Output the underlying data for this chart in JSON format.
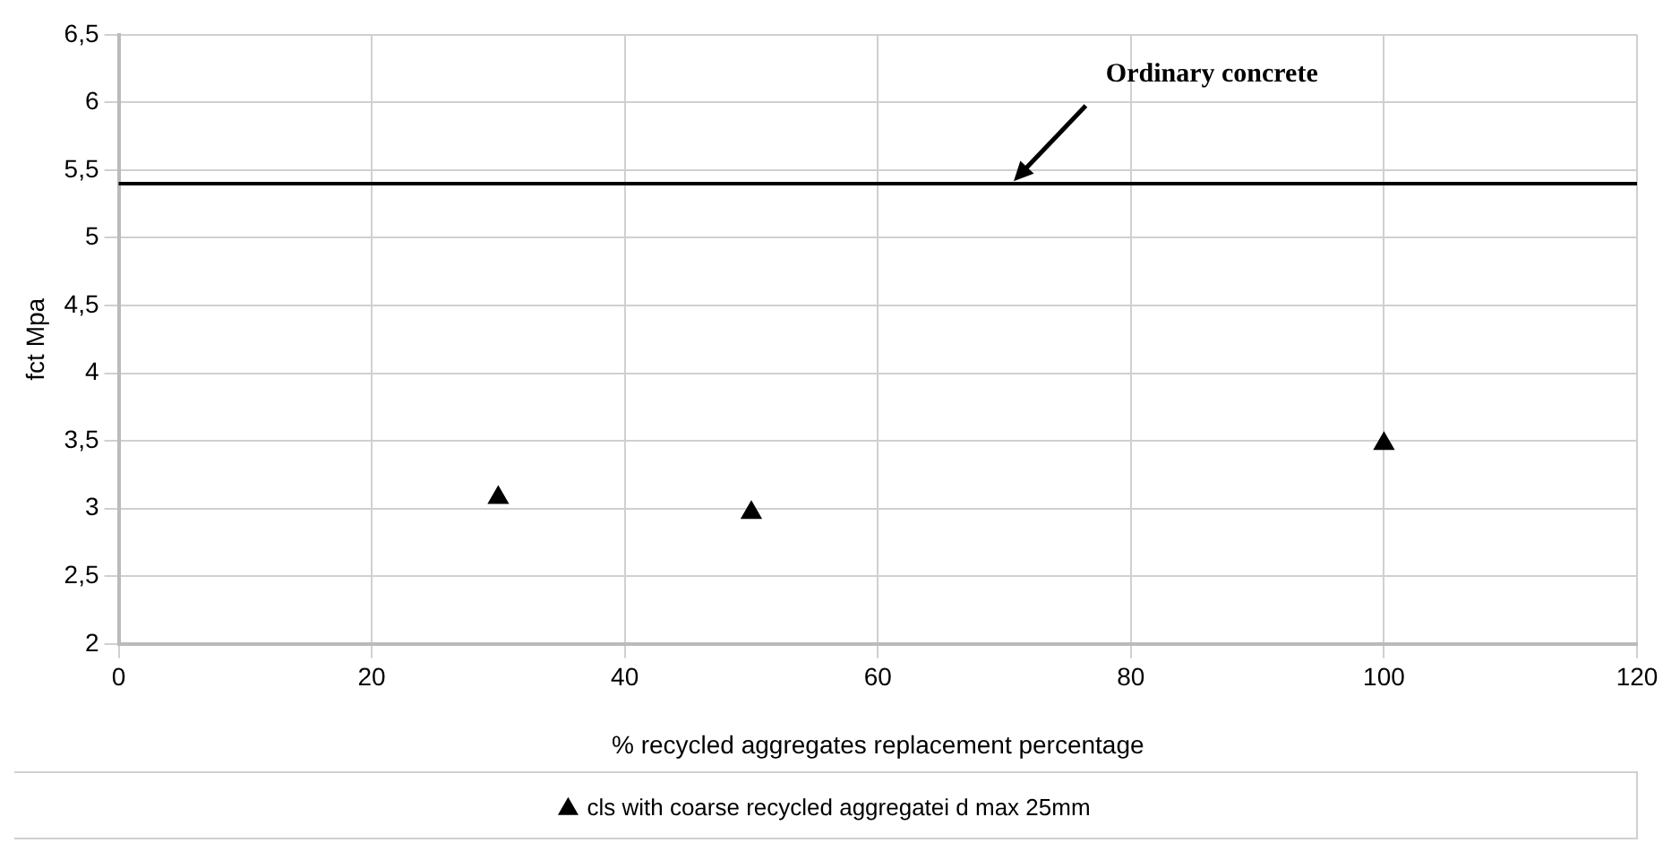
{
  "chart_data": {
    "type": "scatter",
    "xlabel": "% recycled aggregates replacement percentage",
    "ylabel": "fct Mpa",
    "x": [
      30,
      50,
      100
    ],
    "series": [
      {
        "name": "cls with coarse recycled aggregatei d max 25mm",
        "color": "#000000",
        "values": [
          3.08,
          2.97,
          3.48
        ]
      }
    ],
    "marker": "triangle",
    "xlim": [
      0,
      120
    ],
    "xticks": [
      0,
      20,
      40,
      60,
      80,
      100,
      120
    ],
    "ylim": [
      2,
      6.5
    ],
    "yticks": [
      {
        "value": 2,
        "label": "2"
      },
      {
        "value": 2.5,
        "label": "2,5"
      },
      {
        "value": 3,
        "label": "3"
      },
      {
        "value": 3.5,
        "label": "3,5"
      },
      {
        "value": 4,
        "label": "4"
      },
      {
        "value": 4.5,
        "label": "4,5"
      },
      {
        "value": 5,
        "label": "5"
      },
      {
        "value": 5.5,
        "label": "5,5"
      },
      {
        "value": 6,
        "label": "6"
      },
      {
        "value": 6.5,
        "label": "6,5"
      }
    ],
    "ref_lines": [
      {
        "axis": "y",
        "value": 5.4,
        "label": "Ordinary concrete",
        "color": "#000000"
      }
    ],
    "grid": true,
    "legend": "bottom"
  }
}
